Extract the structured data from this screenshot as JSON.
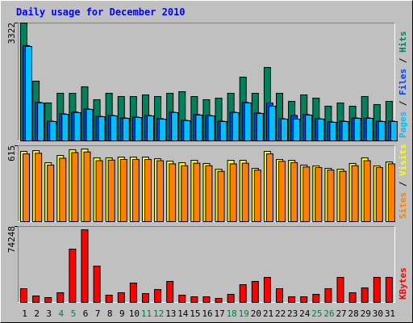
{
  "chart_data": [
    {
      "type": "bar",
      "title": "Daily usage for December 2010",
      "ylim": [
        0,
        3322
      ],
      "yticks": [
        3322
      ],
      "legend_separator": " / ",
      "series": [
        {
          "name": "Hits",
          "color": "#00805c",
          "values": [
            3322,
            1695,
            1085,
            1356,
            1356,
            1537,
            1175,
            1356,
            1265,
            1265,
            1311,
            1265,
            1356,
            1401,
            1265,
            1175,
            1220,
            1356,
            1808,
            1356,
            2079,
            1356,
            1130,
            1311,
            1220,
            994,
            1085,
            994,
            1265,
            1040,
            1130
          ]
        },
        {
          "name": "Files",
          "color": "#0040ff",
          "values": [
            2690,
            1100,
            575,
            780,
            830,
            915,
            710,
            735,
            665,
            690,
            735,
            645,
            825,
            600,
            760,
            735,
            575,
            825,
            1100,
            805,
            1085,
            645,
            735,
            760,
            645,
            555,
            575,
            665,
            665,
            575,
            575
          ]
        },
        {
          "name": "Pages",
          "color": "#00c0ff",
          "values": [
            2667,
            1085,
            565,
            768,
            814,
            904,
            700,
            723,
            655,
            678,
            723,
            633,
            814,
            588,
            746,
            723,
            565,
            814,
            1085,
            791,
            994,
            633,
            633,
            746,
            633,
            542,
            565,
            655,
            655,
            565,
            565
          ]
        }
      ]
    },
    {
      "type": "bar",
      "ylim": [
        0,
        615
      ],
      "yticks": [
        615
      ],
      "legend_separator": " / ",
      "series": [
        {
          "name": "Visits",
          "color": "#ffff00",
          "values": [
            570,
            576,
            479,
            537,
            583,
            589,
            518,
            518,
            524,
            524,
            524,
            511,
            492,
            479,
            498,
            473,
            427,
            498,
            498,
            434,
            570,
            505,
            498,
            460,
            453,
            434,
            427,
            473,
            518,
            453,
            485
          ]
        },
        {
          "name": "Sites",
          "color": "#ff8000",
          "values": [
            550,
            555,
            460,
            515,
            560,
            565,
            495,
            500,
            505,
            505,
            505,
            495,
            470,
            455,
            475,
            455,
            410,
            470,
            475,
            420,
            550,
            490,
            480,
            445,
            440,
            420,
            410,
            455,
            495,
            440,
            470
          ]
        }
      ]
    },
    {
      "type": "bar",
      "ylim": [
        0,
        74248
      ],
      "yticks": [
        74248
      ],
      "categories": [
        "1",
        "2",
        "3",
        "4",
        "5",
        "6",
        "7",
        "8",
        "9",
        "10",
        "11",
        "12",
        "13",
        "14",
        "15",
        "16",
        "17",
        "18",
        "19",
        "20",
        "21",
        "22",
        "23",
        "24",
        "25",
        "26",
        "27",
        "28",
        "29",
        "30",
        "31"
      ],
      "highlight_categories": [
        "4",
        "5",
        "11",
        "12",
        "18",
        "19",
        "25",
        "26"
      ],
      "highlight_color": "#008040",
      "category_color": "#000000",
      "series": [
        {
          "name": "KBytes",
          "color": "#ff0000",
          "values": [
            14068,
            7034,
            5471,
            10160,
            52363,
            71122,
            35950,
            7816,
            10160,
            19537,
            9379,
            13286,
            21100,
            7816,
            6253,
            6253,
            4689,
            8598,
            17975,
            21100,
            25008,
            14068,
            6253,
            6253,
            8598,
            14068,
            25008,
            10160,
            14850,
            25008,
            25008
          ]
        }
      ]
    }
  ]
}
